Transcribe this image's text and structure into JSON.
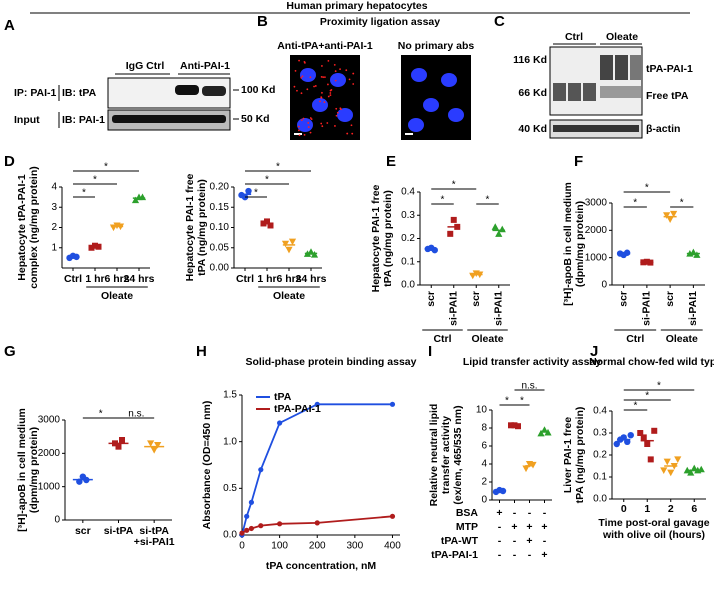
{
  "figure": {
    "title": "Human primary hepatocytes",
    "panel_labels": [
      "A",
      "B",
      "C",
      "D",
      "E",
      "F",
      "G",
      "H",
      "I",
      "J"
    ]
  },
  "panel_a": {
    "lanes": [
      "IgG Ctrl",
      "Anti-PAI-1"
    ],
    "rows": [
      {
        "ip": "IP: PAI-1",
        "ib": "IB: tPA"
      },
      {
        "ip": "Input",
        "ib": "IB: PAI-1"
      }
    ],
    "size_markers": [
      "100 Kd",
      "50 Kd"
    ]
  },
  "panel_b": {
    "title": "Proximity ligation assay",
    "images": [
      "Anti-tPA+anti-PAI-1",
      "No primary abs"
    ]
  },
  "panel_c": {
    "groups": [
      "Ctrl",
      "Oleate"
    ],
    "size_markers": [
      "116 Kd",
      "66 Kd",
      "40 Kd"
    ],
    "bands": [
      "tPA-PAI-1",
      "Free tPA",
      "β-actin"
    ]
  },
  "chart_data": [
    {
      "type": "dot",
      "ylabel": [
        "Hepatocyte tPA-PAI-1",
        "complex (ng/mg protein)"
      ],
      "categories": [
        "Ctrl",
        "1 hr",
        "6 hrs",
        "24 hrs"
      ],
      "points": [
        [
          0.5,
          0.6,
          0.55
        ],
        [
          1.0,
          1.1,
          1.05
        ],
        [
          2.0,
          2.1,
          2.05
        ],
        [
          3.35,
          3.5,
          3.5
        ]
      ],
      "means": [
        0.55,
        1.05,
        2.05,
        3.45
      ],
      "colors": [
        "#1f4fe0",
        "#b01c1c",
        "#f0a020",
        "#2ca02c"
      ],
      "markers": [
        "circle",
        "square",
        "tri-down",
        "tri-up"
      ],
      "ylim": [
        0,
        4
      ],
      "yticks": [
        1,
        2,
        3,
        4
      ],
      "groups": [
        {
          "label": "Oleate",
          "from": 1,
          "to": 3
        }
      ],
      "brackets": [
        {
          "between": [
            0,
            1
          ],
          "label": "*"
        },
        {
          "between": [
            0,
            2
          ],
          "label": "*"
        },
        {
          "between": [
            0,
            3
          ],
          "label": "*"
        }
      ]
    },
    {
      "type": "dot",
      "ylabel": [
        "Hepatocyte PAI-1 free",
        "tPA (ng/mg protein)"
      ],
      "categories": [
        "Ctrl",
        "1 hr",
        "6 hrs",
        "24 hrs"
      ],
      "points": [
        [
          0.18,
          0.175,
          0.19
        ],
        [
          0.11,
          0.115,
          0.105
        ],
        [
          0.06,
          0.045,
          0.065
        ],
        [
          0.035,
          0.04,
          0.033
        ]
      ],
      "means": [
        0.182,
        0.11,
        0.057,
        0.036
      ],
      "colors": [
        "#1f4fe0",
        "#b01c1c",
        "#f0a020",
        "#2ca02c"
      ],
      "markers": [
        "circle",
        "square",
        "tri-down",
        "tri-up"
      ],
      "ylim": [
        0,
        0.2
      ],
      "yticks": [
        {
          "value": 0,
          "label": "0.00"
        },
        {
          "value": 0.05,
          "label": "0.05"
        },
        {
          "value": 0.1,
          "label": "0.10"
        },
        {
          "value": 0.15,
          "label": "0.15"
        },
        {
          "value": 0.2,
          "label": "0.20"
        }
      ],
      "groups": [
        {
          "label": "Oleate",
          "from": 1,
          "to": 3
        }
      ],
      "brackets": [
        {
          "between": [
            0,
            1
          ],
          "label": "*"
        },
        {
          "between": [
            0,
            2
          ],
          "label": "*"
        },
        {
          "between": [
            0,
            3
          ],
          "label": "*"
        }
      ]
    },
    {
      "type": "dot",
      "ylabel": [
        "Hepatocyte PAI-1 free",
        "tPA (ng/mg protein)"
      ],
      "categories": [
        "scr",
        "si-PAI1",
        "scr",
        "si-PAI1"
      ],
      "points": [
        [
          0.155,
          0.16,
          0.15
        ],
        [
          0.22,
          0.28,
          0.25
        ],
        [
          0.04,
          0.05,
          0.045
        ],
        [
          0.25,
          0.22,
          0.24
        ]
      ],
      "means": [
        0.155,
        0.25,
        0.045,
        0.235
      ],
      "colors": [
        "#1f4fe0",
        "#b01c1c",
        "#f0a020",
        "#2ca02c"
      ],
      "markers": [
        "circle",
        "square",
        "tri-down",
        "tri-up"
      ],
      "ylim": [
        0,
        0.4
      ],
      "yticks": [
        {
          "value": 0,
          "label": "0.0"
        },
        {
          "value": 0.1,
          "label": "0.1"
        },
        {
          "value": 0.2,
          "label": "0.2"
        },
        {
          "value": 0.3,
          "label": "0.3"
        },
        {
          "value": 0.4,
          "label": "0.4"
        }
      ],
      "groups": [
        {
          "label": "Ctrl",
          "from": 0,
          "to": 1
        },
        {
          "label": "Oleate",
          "from": 2,
          "to": 3
        }
      ],
      "brackets": [
        {
          "between": [
            0,
            1
          ],
          "label": "*"
        },
        {
          "between": [
            2,
            3
          ],
          "label": "*"
        },
        {
          "between": [
            0,
            2
          ],
          "label": "*"
        }
      ]
    },
    {
      "type": "dot",
      "ylabel": [
        "[³H]-apoB in cell medium",
        "(dpm/mg protein)"
      ],
      "categories": [
        "scr",
        "si-PAI1",
        "scr",
        "si-PAI1"
      ],
      "points": [
        [
          1150,
          1100,
          1180
        ],
        [
          830,
          850,
          820
        ],
        [
          2550,
          2400,
          2600
        ],
        [
          1150,
          1200,
          1100
        ]
      ],
      "means": [
        1140,
        830,
        2500,
        1150
      ],
      "colors": [
        "#1f4fe0",
        "#b01c1c",
        "#f0a020",
        "#2ca02c"
      ],
      "markers": [
        "circle",
        "square",
        "tri-down",
        "tri-up"
      ],
      "ylim": [
        0,
        3000
      ],
      "yticks": [
        0,
        1000,
        2000,
        3000
      ],
      "groups": [
        {
          "label": "Ctrl",
          "from": 0,
          "to": 1
        },
        {
          "label": "Oleate",
          "from": 2,
          "to": 3
        }
      ],
      "brackets": [
        {
          "between": [
            0,
            1
          ],
          "label": "*"
        },
        {
          "between": [
            2,
            3
          ],
          "label": "*"
        },
        {
          "between": [
            0,
            2
          ],
          "label": "*"
        }
      ]
    },
    {
      "type": "dot",
      "ylabel": [
        "[³H]-apoB in cell medium",
        "(dpm/mg protein)"
      ],
      "categories": [
        [
          "scr"
        ],
        [
          "si-tPA"
        ],
        [
          "si-tPA",
          "+si-PAI1"
        ]
      ],
      "points": [
        [
          1150,
          1300,
          1200
        ],
        [
          2300,
          2200,
          2400
        ],
        [
          2300,
          2100,
          2250
        ]
      ],
      "means": [
        1210,
        2300,
        2200
      ],
      "colors": [
        "#1f4fe0",
        "#b01c1c",
        "#f0a020"
      ],
      "markers": [
        "circle",
        "square",
        "tri-down"
      ],
      "ylim": [
        0,
        3000
      ],
      "yticks": [
        0,
        1000,
        2000,
        3000
      ],
      "brackets": [
        {
          "between": [
            0,
            1
          ],
          "label": "*"
        },
        {
          "between": [
            1,
            2
          ],
          "label": "n.s."
        }
      ]
    },
    {
      "type": "line",
      "title": "Solid-phase protein binding assay",
      "ylabel": [
        "Absorbance (OD=450 nm)"
      ],
      "xlabel": [
        "tPA concentration, nM"
      ],
      "x": [
        0,
        12.5,
        25,
        50,
        100,
        200,
        400
      ],
      "series": [
        {
          "name": "tPA",
          "color": "#1f4fe0",
          "values": [
            0,
            0.2,
            0.35,
            0.7,
            1.2,
            1.4,
            1.4
          ]
        },
        {
          "name": "tPA-PAI-1",
          "color": "#b01c1c",
          "values": [
            0.02,
            0.05,
            0.07,
            0.1,
            0.12,
            0.13,
            0.2
          ]
        }
      ],
      "xlim": [
        0,
        420
      ],
      "xticks": [
        0,
        100,
        200,
        300,
        400
      ],
      "ylim": [
        0,
        1.5
      ],
      "yticks": [
        {
          "value": 0,
          "label": "0.0"
        },
        {
          "value": 0.5,
          "label": "0.5"
        },
        {
          "value": 1,
          "label": "1.0"
        },
        {
          "value": 1.5,
          "label": "1.5"
        }
      ],
      "legend": "top-left"
    },
    {
      "type": "dot",
      "title": "Lipid transfer activity assay",
      "ylabel": [
        "Relative neutral lipid",
        "transfer activity",
        "(ex/em, 465/535 nm)"
      ],
      "categories": [
        null,
        null,
        null,
        null
      ],
      "points": [
        [
          0.9,
          1.1,
          1.0
        ],
        [
          8.3,
          8.3,
          8.2
        ],
        [
          3.5,
          4.0,
          3.9
        ],
        [
          7.4,
          7.8,
          7.5
        ]
      ],
      "means": [
        1.0,
        8.3,
        3.8,
        7.6
      ],
      "colors": [
        "#1f4fe0",
        "#b01c1c",
        "#f0a020",
        "#2ca02c"
      ],
      "markers": [
        "circle",
        "square",
        "tri-down",
        "tri-up"
      ],
      "ylim": [
        0,
        10
      ],
      "yticks": [
        0,
        2,
        4,
        6,
        8,
        10
      ],
      "brackets": [
        {
          "between": [
            0,
            1
          ],
          "label": "*"
        },
        {
          "between": [
            1,
            2
          ],
          "label": "*"
        },
        {
          "between": [
            1,
            3
          ],
          "label": "n.s."
        }
      ],
      "conditions": [
        {
          "label": "BSA",
          "signs": [
            "+",
            "-",
            "-",
            "-"
          ]
        },
        {
          "label": "MTP",
          "signs": [
            "-",
            "+",
            "+",
            "+"
          ]
        },
        {
          "label": "tPA-WT",
          "signs": [
            "-",
            "-",
            "+",
            "-"
          ]
        },
        {
          "label": "tPA-PAI-1",
          "signs": [
            "-",
            "-",
            "-",
            "+"
          ]
        }
      ]
    },
    {
      "type": "dot",
      "title": "Normal chow-fed wild type mice",
      "ylabel": [
        "Liver PAI-1 free",
        "tPA (ng/mg protein)"
      ],
      "xlabel": [
        "Time post-oral gavage",
        "with olive oil (hours)"
      ],
      "categories": [
        "0",
        "1",
        "2",
        "6"
      ],
      "points": [
        [
          0.25,
          0.27,
          0.28,
          0.26,
          0.29
        ],
        [
          0.3,
          0.28,
          0.25,
          0.18,
          0.31
        ],
        [
          0.13,
          0.17,
          0.12,
          0.15,
          0.18
        ],
        [
          0.13,
          0.12,
          0.14,
          0.13,
          0.135
        ]
      ],
      "means": [
        0.27,
        0.265,
        0.15,
        0.13
      ],
      "colors": [
        "#1f4fe0",
        "#b01c1c",
        "#f0a020",
        "#2ca02c"
      ],
      "markers": [
        "circle",
        "square",
        "tri-down",
        "tri-up"
      ],
      "ylim": [
        0,
        0.4
      ],
      "yticks": [
        {
          "value": 0,
          "label": "0.0"
        },
        {
          "value": 0.1,
          "label": "0.1"
        },
        {
          "value": 0.2,
          "label": "0.2"
        },
        {
          "value": 0.3,
          "label": "0.3"
        },
        {
          "value": 0.4,
          "label": "0.4"
        }
      ],
      "brackets": [
        {
          "between": [
            0,
            1
          ],
          "label": "*"
        },
        {
          "between": [
            0,
            2
          ],
          "label": "*"
        },
        {
          "between": [
            0,
            3
          ],
          "label": "*"
        }
      ]
    }
  ]
}
